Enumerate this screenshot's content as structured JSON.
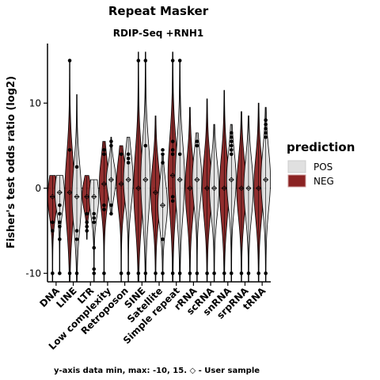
{
  "chart_data": {
    "type": "violin",
    "title": "Repeat Masker",
    "subtitle": "RDIP-Seq +RNH1",
    "ylabel": "Fisher's test odds ratio (log2)",
    "xlabel": "",
    "ylim": [
      -11,
      17
    ],
    "yticks": [
      "-10",
      "0",
      "10"
    ],
    "ytick_values": [
      -10,
      0,
      10
    ],
    "reference_line": 0,
    "categories": [
      "DNA",
      "LINE",
      "LTR",
      "Low complexity",
      "Retroposon",
      "SINE",
      "Satellite",
      "Simple repeat",
      "rRNA",
      "scRNA",
      "snRNA",
      "srpRNA",
      "tRNA"
    ],
    "legend": {
      "title": "prediction",
      "position": "right",
      "entries": [
        {
          "label": "POS",
          "color": "#e0e0e0"
        },
        {
          "label": "NEG",
          "color": "#8b2323"
        }
      ]
    },
    "series": [
      {
        "name": "NEG",
        "color": "#8b2323",
        "violins": [
          {
            "min": -11,
            "max": 1.5,
            "median": -1,
            "center": -1
          },
          {
            "min": -11,
            "max": 15,
            "median": -0.5,
            "center": -0.3
          },
          {
            "min": -6,
            "max": 1.5,
            "median": -1,
            "center": -0.8
          },
          {
            "min": -11,
            "max": 5.5,
            "median": 0.5,
            "center": 0.5
          },
          {
            "min": -11,
            "max": 5,
            "median": 0.5,
            "center": 0.5
          },
          {
            "min": -11,
            "max": 16,
            "median": 0,
            "center": 0
          },
          {
            "min": -11,
            "max": 8.5,
            "median": -0.5,
            "center": -0.5
          },
          {
            "min": -11,
            "max": 16,
            "median": 1.5,
            "center": 1.5
          },
          {
            "min": -11,
            "max": 9.5,
            "median": 0,
            "center": 0
          },
          {
            "min": -11,
            "max": 10.5,
            "median": 0,
            "center": 0
          },
          {
            "min": -11,
            "max": 11.5,
            "median": 0,
            "center": 0
          },
          {
            "min": -11,
            "max": 9,
            "median": 0,
            "center": 0
          },
          {
            "min": -11,
            "max": 10,
            "median": 0,
            "center": 0
          }
        ]
      },
      {
        "name": "POS",
        "color": "#e0e0e0",
        "violins": [
          {
            "min": -10,
            "max": 1.5,
            "median": -0.5,
            "center": -0.5
          },
          {
            "min": -11,
            "max": 11,
            "median": -1,
            "center": -1
          },
          {
            "min": -11,
            "max": 1,
            "median": -1,
            "center": -1
          },
          {
            "min": -3,
            "max": 6,
            "median": 1,
            "center": 1
          },
          {
            "min": -11,
            "max": 6,
            "median": 1,
            "center": 1
          },
          {
            "min": -11,
            "max": 16,
            "median": 1,
            "center": 1
          },
          {
            "min": -11,
            "max": 4,
            "median": -2,
            "center": -2
          },
          {
            "min": -11,
            "max": 15,
            "median": 1,
            "center": 1
          },
          {
            "min": -11,
            "max": 6.5,
            "median": 1,
            "center": 1
          },
          {
            "min": -11,
            "max": 7.5,
            "median": 0,
            "center": 0
          },
          {
            "min": -11,
            "max": 7.5,
            "median": 1,
            "center": 1
          },
          {
            "min": -11,
            "max": 8.5,
            "median": 0,
            "center": 0
          },
          {
            "min": -11,
            "max": 9.5,
            "median": 1,
            "center": 1
          }
        ]
      }
    ],
    "outliers": [
      {
        "category": "DNA",
        "series": "NEG",
        "y": [
          -4,
          -5,
          -10
        ]
      },
      {
        "category": "DNA",
        "series": "POS",
        "y": [
          -2,
          -3,
          -4,
          -4.5,
          -6,
          -10
        ]
      },
      {
        "category": "LINE",
        "series": "NEG",
        "y": [
          15,
          4.5,
          -10
        ]
      },
      {
        "category": "LINE",
        "series": "POS",
        "y": [
          2.5,
          -5,
          -6,
          -10
        ]
      },
      {
        "category": "LTR",
        "series": "NEG",
        "y": [
          -3,
          -4,
          -4.5,
          -5
        ]
      },
      {
        "category": "LTR",
        "series": "POS",
        "y": [
          -3,
          -3.5,
          -4,
          -7,
          -9.5,
          -10
        ]
      },
      {
        "category": "Low complexity",
        "series": "NEG",
        "y": [
          4.5,
          4,
          -2,
          -2.5,
          -10
        ]
      },
      {
        "category": "Low complexity",
        "series": "POS",
        "y": [
          5.5,
          5,
          -2,
          -3
        ]
      },
      {
        "category": "Retroposon",
        "series": "NEG",
        "y": [
          4,
          -10
        ]
      },
      {
        "category": "Retroposon",
        "series": "POS",
        "y": [
          4,
          3.5,
          3,
          -10
        ]
      },
      {
        "category": "SINE",
        "series": "NEG",
        "y": [
          15,
          -10
        ]
      },
      {
        "category": "SINE",
        "series": "POS",
        "y": [
          15,
          5,
          -10
        ]
      },
      {
        "category": "Satellite",
        "series": "NEG",
        "y": [
          -10
        ]
      },
      {
        "category": "Satellite",
        "series": "POS",
        "y": [
          4.5,
          4,
          3,
          -6,
          -10
        ]
      },
      {
        "category": "Simple repeat",
        "series": "NEG",
        "y": [
          15,
          5.5,
          4.5,
          4,
          -1,
          -1.5,
          -10
        ]
      },
      {
        "category": "Simple repeat",
        "series": "POS",
        "y": [
          15,
          4,
          -10
        ]
      },
      {
        "category": "rRNA",
        "series": "NEG",
        "y": [
          -10
        ]
      },
      {
        "category": "rRNA",
        "series": "POS",
        "y": [
          5.5,
          5,
          -10
        ]
      },
      {
        "category": "scRNA",
        "series": "NEG",
        "y": [
          -10
        ]
      },
      {
        "category": "scRNA",
        "series": "POS",
        "y": [
          -10
        ]
      },
      {
        "category": "snRNA",
        "series": "NEG",
        "y": [
          -10
        ]
      },
      {
        "category": "snRNA",
        "series": "POS",
        "y": [
          6.5,
          6,
          5.5,
          5,
          4.5,
          4,
          -10
        ]
      },
      {
        "category": "srpRNA",
        "series": "NEG",
        "y": [
          -10
        ]
      },
      {
        "category": "srpRNA",
        "series": "POS",
        "y": [
          -10
        ]
      },
      {
        "category": "tRNA",
        "series": "NEG",
        "y": [
          -10
        ]
      },
      {
        "category": "tRNA",
        "series": "POS",
        "y": [
          8,
          7.5,
          7,
          6.5,
          6,
          -10
        ]
      }
    ],
    "user_sample_marker": "◇"
  },
  "caption": "y-axis data min, max: -10, 15. ◇ - User sample"
}
